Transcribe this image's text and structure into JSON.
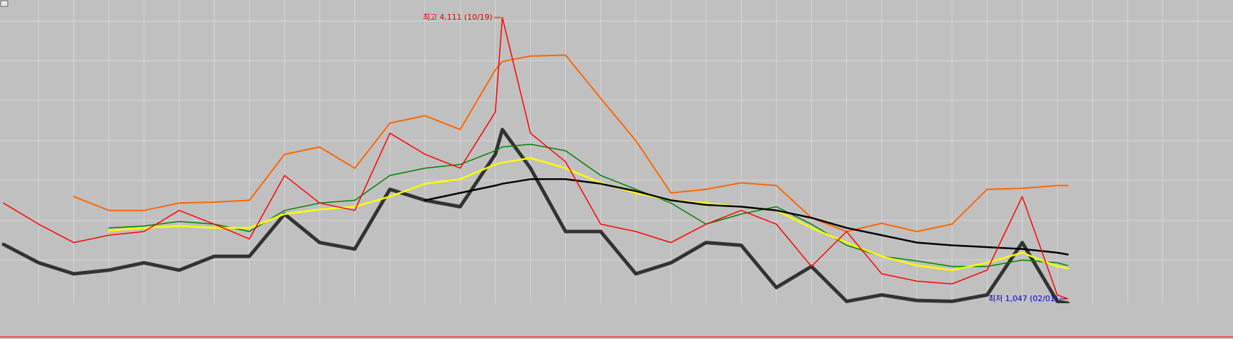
{
  "chart_data": {
    "type": "line",
    "x": [
      0,
      1,
      2,
      3,
      4,
      5,
      6,
      7,
      8,
      9,
      10,
      11,
      12,
      13,
      14,
      14.2,
      15,
      16,
      17,
      18,
      19,
      20,
      21,
      22,
      23,
      24,
      25,
      26,
      27,
      28,
      29,
      30,
      30.3
    ],
    "xlim": [
      -0.1,
      35
    ],
    "xticks": [
      1,
      2,
      3,
      4,
      5,
      6,
      7,
      8,
      9,
      10,
      11,
      12,
      13,
      14,
      15,
      16,
      17,
      18,
      19,
      20,
      21,
      22,
      23,
      24,
      25,
      26,
      27,
      28,
      29,
      30,
      31,
      32,
      33,
      34
    ],
    "ylim": [
      1000,
      4300
    ],
    "yticks": [
      1470,
      1900,
      2340,
      2770,
      3210,
      3640,
      4070
    ],
    "grid": true,
    "series": [
      {
        "color": "#ff6600",
        "width": 2,
        "values": [
          null,
          null,
          2160,
          2010,
          2010,
          2090,
          2100,
          2120,
          2620,
          2700,
          2470,
          2960,
          3040,
          2890,
          3540,
          3630,
          3690,
          3700,
          3230,
          2770,
          2200,
          2240,
          2310,
          2280,
          1930,
          1780,
          1870,
          1780,
          1860,
          2240,
          2250,
          2280,
          2280
        ]
      },
      {
        "color": "#333333",
        "width": 5,
        "values": [
          1640,
          1440,
          1320,
          1360,
          1440,
          1360,
          1510,
          1510,
          1970,
          1660,
          1590,
          2240,
          2120,
          2050,
          2620,
          2890,
          2470,
          1780,
          1780,
          1320,
          1440,
          1660,
          1630,
          1170,
          1400,
          1020,
          1090,
          1030,
          1020,
          1090,
          1660,
          1020,
          1000
        ]
      },
      {
        "color": "#008000",
        "width": 1.5,
        "values": [
          null,
          null,
          null,
          1820,
          1840,
          1890,
          1860,
          1780,
          2010,
          2090,
          2120,
          2390,
          2470,
          2510,
          2660,
          2700,
          2730,
          2660,
          2390,
          2240,
          2090,
          1860,
          1970,
          2050,
          1860,
          1630,
          1510,
          1460,
          1400,
          1400,
          1470,
          1440,
          1410
        ]
      },
      {
        "color": "#ffff00",
        "width": 2.5,
        "values": [
          null,
          null,
          null,
          1790,
          1820,
          1840,
          1820,
          1820,
          1970,
          2020,
          2050,
          2160,
          2300,
          2350,
          2510,
          2530,
          2580,
          2470,
          2310,
          2200,
          2120,
          2090,
          2050,
          2010,
          1820,
          1660,
          1510,
          1410,
          1360,
          1440,
          1550,
          1400,
          1380
        ]
      },
      {
        "color": "#000000",
        "width": 2.5,
        "values": [
          null,
          null,
          null,
          null,
          null,
          null,
          null,
          null,
          null,
          null,
          null,
          null,
          2120,
          2200,
          2280,
          2300,
          2350,
          2350,
          2300,
          2220,
          2120,
          2070,
          2050,
          2010,
          1930,
          1820,
          1740,
          1660,
          1630,
          1610,
          1590,
          1550,
          1530
        ]
      },
      {
        "color": "#ff0000",
        "width": 1.5,
        "values": [
          2090,
          1860,
          1660,
          1740,
          1780,
          2010,
          1860,
          1700,
          2390,
          2090,
          2010,
          2850,
          2620,
          2470,
          3080,
          4110,
          2850,
          2540,
          1860,
          1780,
          1660,
          1860,
          2010,
          1860,
          1400,
          1780,
          1320,
          1240,
          1210,
          1360,
          2160,
          1090,
          1047
        ]
      }
    ],
    "annotations": [
      {
        "text": "최고 4,111 (10/19)",
        "color": "#e00000",
        "at": 15
      },
      {
        "text": "최저 1,047 (02/01)",
        "color": "#0000c0",
        "at": 32
      }
    ]
  }
}
